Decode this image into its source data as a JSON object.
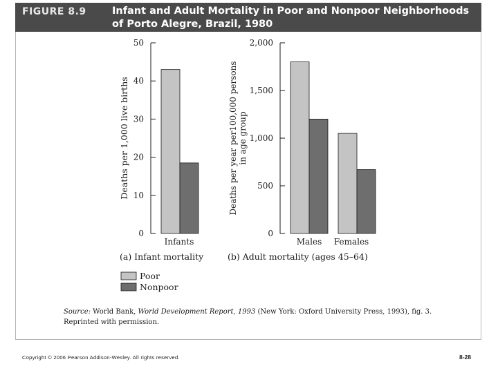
{
  "header": {
    "figure_label": "FIGURE 8.9",
    "title": "Infant and Adult Mortality in Poor and Nonpoor Neighborhoods of Porto Alegre, Brazil, 1980"
  },
  "colors": {
    "poor": "#c4c4c4",
    "nonpoor": "#6e6e6e",
    "header_bg": "#4a4a4a"
  },
  "chart_data": [
    {
      "type": "bar",
      "panel": "left",
      "caption": "(a) Infant mortality",
      "ylabel": "Deaths per 1,000 live births",
      "ylim": [
        0,
        50
      ],
      "yticks": [
        0,
        10,
        20,
        30,
        40,
        50
      ],
      "ytick_labels": [
        "0",
        "10",
        "20",
        "30",
        "40",
        "50"
      ],
      "categories": [
        "Infants"
      ],
      "series": [
        {
          "name": "Poor",
          "values": [
            43
          ]
        },
        {
          "name": "Nonpoor",
          "values": [
            18.5
          ]
        }
      ]
    },
    {
      "type": "bar",
      "panel": "right",
      "caption": "(b) Adult mortality (ages 45–64)",
      "ylabel_lines": [
        "Deaths per year per100,000 persons",
        "in age group"
      ],
      "ylim": [
        0,
        2000
      ],
      "yticks": [
        0,
        500,
        1000,
        1500,
        2000
      ],
      "ytick_labels": [
        "0",
        "500",
        "1,000",
        "1,500",
        "2,000"
      ],
      "categories": [
        "Males",
        "Females"
      ],
      "series": [
        {
          "name": "Poor",
          "values": [
            1800,
            1050
          ]
        },
        {
          "name": "Nonpoor",
          "values": [
            1200,
            670
          ]
        }
      ]
    }
  ],
  "legend": {
    "items": [
      "Poor",
      "Nonpoor"
    ]
  },
  "source": {
    "label": "Source:",
    "text_a": " World Bank, ",
    "italic_title": "World Development Report, 1993",
    "text_b": " (New York: Oxford University Press, 1993), fig. 3.",
    "line2": "Reprinted with permission."
  },
  "footer": {
    "copyright": "Copyright © 2006 Pearson Addison-Wesley. All rights reserved.",
    "page": "8-28"
  }
}
